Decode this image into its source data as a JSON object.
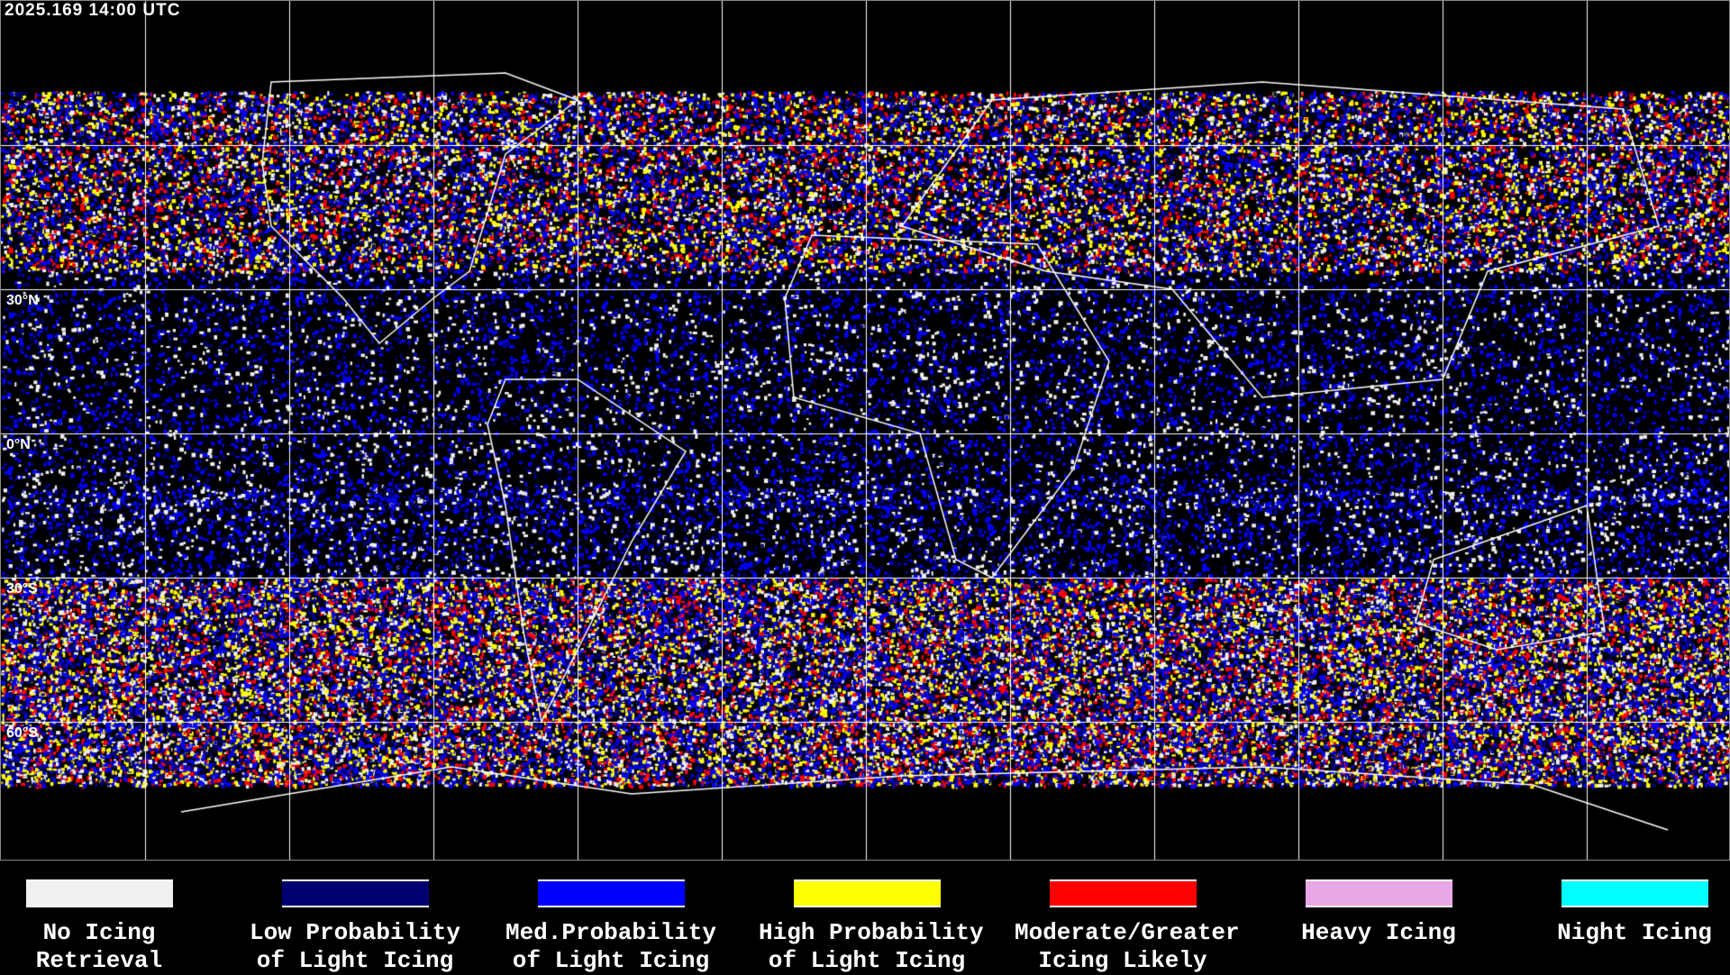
{
  "header": {
    "timestamp": "2025.169 14:00 UTC"
  },
  "map": {
    "lat_labels": [
      "30°N",
      "0°N",
      "30°S",
      "60°S"
    ],
    "graticule_color": "#ffffff",
    "coastline_color": "#ffffff"
  },
  "legend": [
    {
      "line1": "No Icing",
      "line2": "Retrieval",
      "color": "#f0f0f0"
    },
    {
      "line1": "Low Probability",
      "line2": "of Light Icing",
      "color": "#000070"
    },
    {
      "line1": "Med.Probability",
      "line2": "of Light Icing",
      "color": "#0000ff"
    },
    {
      "line1": "High Probability",
      "line2": "of Light Icing",
      "color": "#ffff00"
    },
    {
      "line1": "Moderate/Greater",
      "line2": "Icing Likely",
      "color": "#ff0000"
    },
    {
      "line1": "Heavy Icing",
      "line2": "",
      "color": "#e8a8e8"
    },
    {
      "line1": "Night Icing",
      "line2": "",
      "color": "#00ffff"
    }
  ]
}
